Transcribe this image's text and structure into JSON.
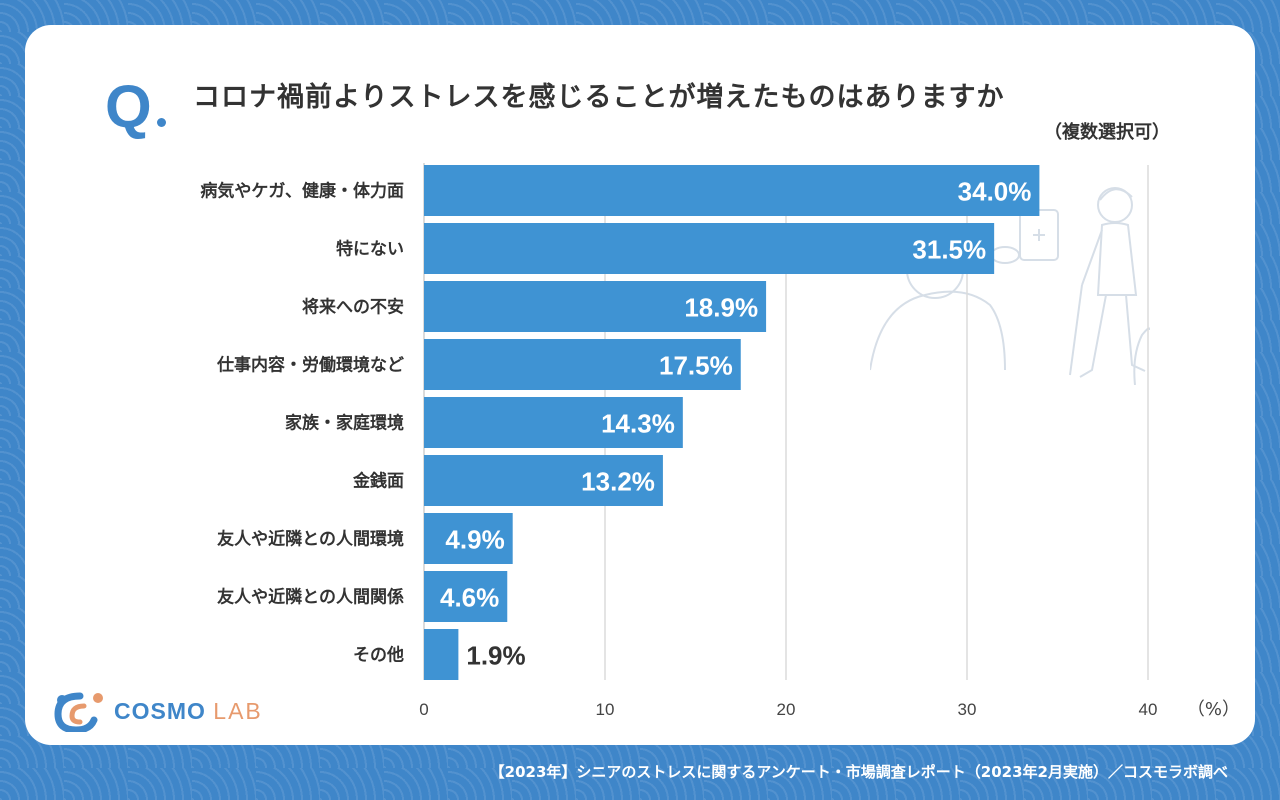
{
  "header": {
    "q_mark": "Q",
    "title": "コロナ禍前よりストレスを感じることが増えたものはありますか",
    "subtitle": "（複数選択可）"
  },
  "chart_data": {
    "type": "bar",
    "orientation": "horizontal",
    "categories": [
      "病気やケガ、健康・体力面",
      "特にない",
      "将来への不安",
      "仕事内容・労働環境など",
      "家族・家庭環境",
      "金銭面",
      "友人や近隣との人間環境",
      "友人や近隣との人間関係",
      "その他"
    ],
    "values": [
      34.0,
      31.5,
      18.9,
      17.5,
      14.3,
      13.2,
      4.9,
      4.6,
      1.9
    ],
    "value_labels": [
      "34.0%",
      "31.5%",
      "18.9%",
      "17.5%",
      "14.3%",
      "13.2%",
      "4.9%",
      "4.6%",
      "1.9%"
    ],
    "xlim": [
      0,
      40
    ],
    "x_ticks": [
      0,
      10,
      20,
      30,
      40
    ],
    "x_tick_labels": [
      "0",
      "10",
      "20",
      "30",
      "40"
    ],
    "x_unit": "（%）",
    "grid": true,
    "bar_color": "#3f93d3"
  },
  "logo": {
    "name_main": "COSMO",
    "name_sub": "LAB"
  },
  "footer": {
    "source": "【2023年】シニアのストレスに関するアンケート・市場調査レポート（2023年2月実施）／コスモラボ調べ"
  },
  "colors": {
    "background": "#3f86c9",
    "card": "#ffffff",
    "accent": "#3f86c9",
    "logo_accent": "#e79a6d"
  },
  "icons": [
    "senior-walking-illustration",
    "cosmo-lab-logo-icon"
  ]
}
